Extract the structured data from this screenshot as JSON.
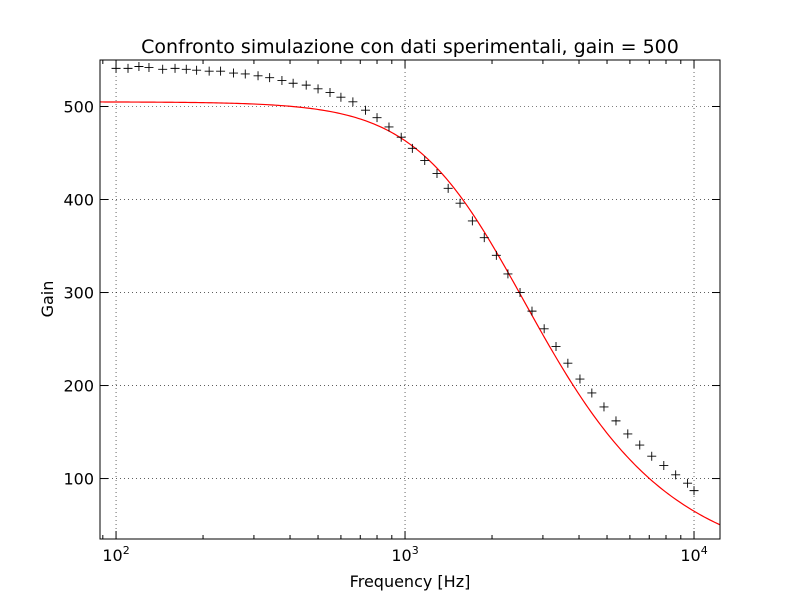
{
  "chart_data": {
    "type": "scatter",
    "title": "Confronto simulazione con dati sperimentali, gain = 500",
    "xlabel": "Frequency [Hz]",
    "ylabel": "Gain",
    "x_scale": "log",
    "xlim": [
      88,
      12300
    ],
    "ylim": [
      35,
      550
    ],
    "grid": true,
    "x_ticks": [
      {
        "value": 100,
        "base": "10",
        "exp": "2"
      },
      {
        "value": 1000,
        "base": "10",
        "exp": "3"
      },
      {
        "value": 10000,
        "base": "10",
        "exp": "4"
      }
    ],
    "y_ticks": [
      {
        "value": 100,
        "label": "100"
      },
      {
        "value": 200,
        "label": "200"
      },
      {
        "value": 300,
        "label": "300"
      },
      {
        "value": 400,
        "label": "400"
      },
      {
        "value": 500,
        "label": "500"
      }
    ],
    "series": [
      {
        "kind": "markers",
        "marker": "plus",
        "color": "#000000",
        "x": [
          100,
          110,
          120,
          130,
          145,
          160,
          175,
          190,
          210,
          230,
          255,
          280,
          310,
          340,
          375,
          410,
          455,
          500,
          550,
          600,
          660,
          730,
          800,
          880,
          970,
          1060,
          1170,
          1290,
          1410,
          1550,
          1710,
          1880,
          2070,
          2270,
          2500,
          2750,
          3030,
          3330,
          3660,
          4030,
          4430,
          4880,
          5370,
          5900,
          6490,
          7140,
          7860,
          8640,
          9500,
          10000
        ],
        "y": [
          541,
          541,
          543,
          542,
          540,
          541,
          540,
          539,
          538,
          538,
          536,
          535,
          533,
          531,
          528,
          525,
          523,
          519,
          515,
          510,
          505,
          496,
          488,
          478,
          467,
          455,
          442,
          428,
          412,
          396,
          377,
          359,
          340,
          320,
          300,
          280,
          261,
          242,
          224,
          207,
          192,
          177,
          162,
          148,
          136,
          124,
          114,
          104,
          95,
          87
        ]
      },
      {
        "kind": "line",
        "color": "#ff0000",
        "gain0": 505,
        "cutoff_hz": 1950,
        "order": 1.25
      }
    ]
  }
}
